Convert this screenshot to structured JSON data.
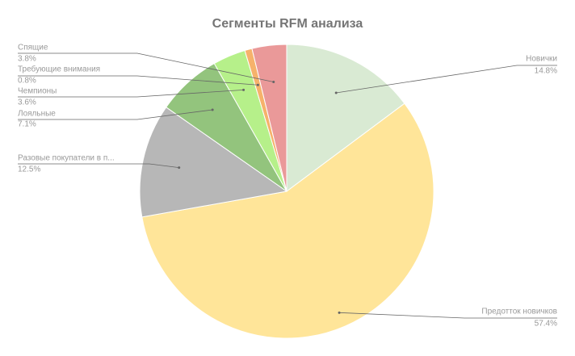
{
  "chart_data": {
    "type": "pie",
    "title": "Сегменты RFM анализа",
    "categories": [
      "Новички",
      "Предотток новичков",
      "Разовые покупатели в п...",
      "Лояльные",
      "Чемпионы",
      "Требующие внимания",
      "Спящие"
    ],
    "values": [
      14.8,
      57.4,
      12.5,
      7.1,
      3.6,
      0.8,
      3.8
    ],
    "value_labels": [
      "14.8%",
      "57.4%",
      "12.5%",
      "7.1%",
      "3.6%",
      "0.8%",
      "3.8%"
    ],
    "colors": [
      "#d9ead3",
      "#ffe599",
      "#b7b7b7",
      "#93c47d",
      "#b6f08a",
      "#f6b26b",
      "#ea9999"
    ]
  }
}
